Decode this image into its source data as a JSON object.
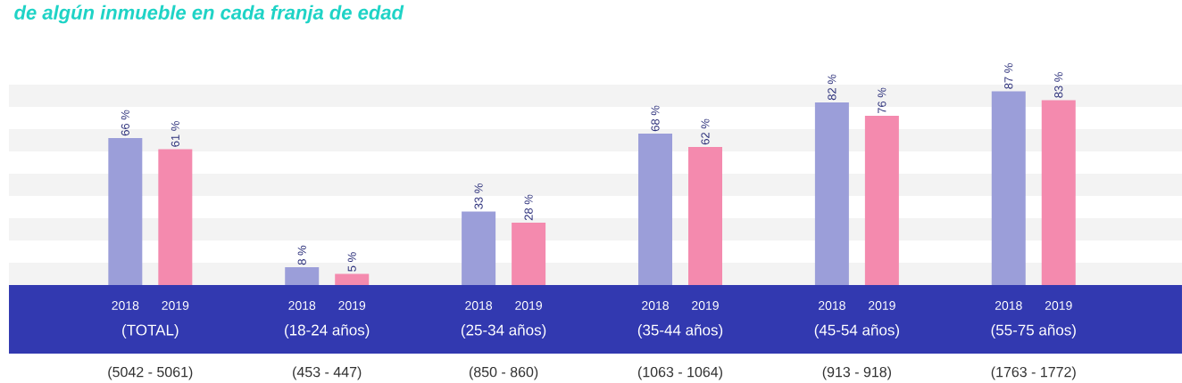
{
  "chart_data": {
    "type": "bar",
    "title": "de algún inmueble en cada franja de edad",
    "categories": [
      "(TOTAL)",
      "(18-24 años)",
      "(25-34 años)",
      "(35-44 años)",
      "(45-54 años)",
      "(55-75 años)"
    ],
    "series": [
      {
        "name": "2018",
        "color": "#9b9ed9",
        "values": [
          66,
          8,
          33,
          68,
          82,
          87
        ],
        "value_labels": [
          "66 %",
          "8 %",
          "33 %",
          "68 %",
          "82 %",
          "87 %"
        ]
      },
      {
        "name": "2019",
        "color": "#f48aae",
        "values": [
          61,
          5,
          28,
          62,
          76,
          83
        ],
        "value_labels": [
          "61 %",
          "5 %",
          "28 %",
          "62 %",
          "76 %",
          "83 %"
        ]
      }
    ],
    "bands": [
      {
        "axis": "y",
        "from": 0,
        "to": 10,
        "color": "#f3f3f3"
      },
      {
        "axis": "y",
        "from": 20,
        "to": 30,
        "color": "#f3f3f3"
      },
      {
        "axis": "y",
        "from": 40,
        "to": 50,
        "color": "#f3f3f3"
      },
      {
        "axis": "y",
        "from": 60,
        "to": 70,
        "color": "#f3f3f3"
      },
      {
        "axis": "y",
        "from": 80,
        "to": 90,
        "color": "#f3f3f3"
      }
    ],
    "annotations": [
      "(5042 - 5061)",
      "(453 - 447)",
      "(850 - 860)",
      "(1063 - 1064)",
      "(913 - 918)",
      "(1763 - 1772)"
    ]
  }
}
